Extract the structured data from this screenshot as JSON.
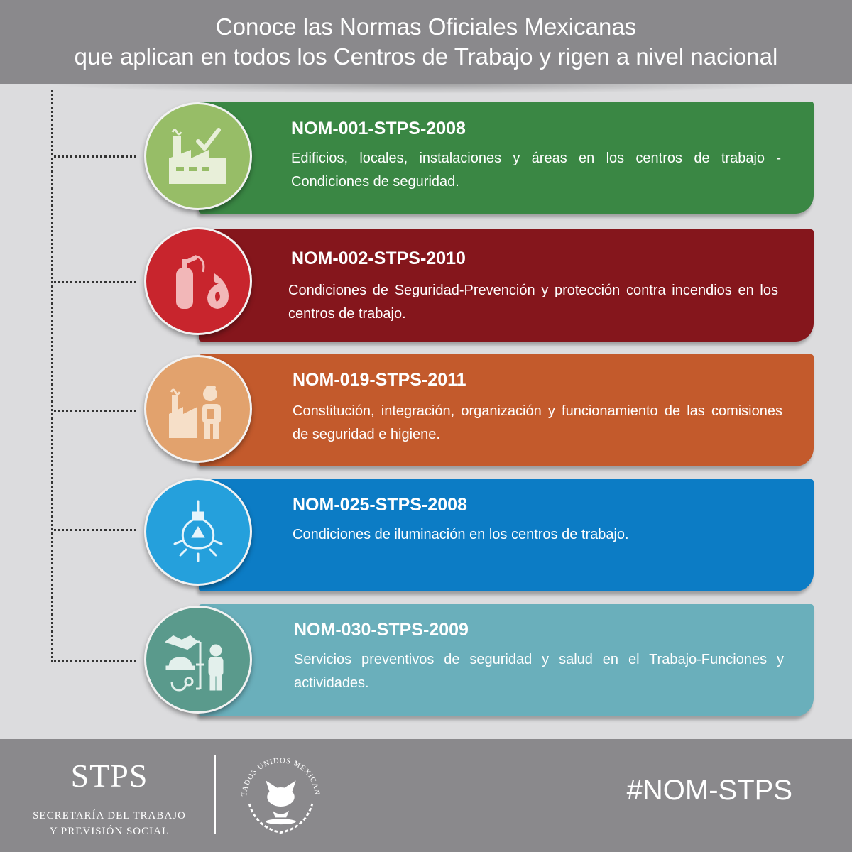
{
  "header": {
    "line1": "Conoce las Normas Oficiales Mexicanas",
    "line2": "que aplican en todos los Centros de Trabajo y rigen a nivel nacional"
  },
  "norms": [
    {
      "code": "NOM-001-STPS-2008",
      "description": "Edificios, locales, instalaciones y áreas en los centros de trabajo - Condiciones de seguridad.",
      "icon": "factory-check-icon",
      "card_color": "#3a8744",
      "circle_color": "#97bd67"
    },
    {
      "code": "NOM-002-STPS-2010",
      "description": "Condiciones de Seguridad-Prevención y protección contra incendios en los centros de trabajo.",
      "icon": "fire-extinguisher-flame-icon",
      "card_color": "#85161c",
      "circle_color": "#c8252d"
    },
    {
      "code": "NOM-019-STPS-2011",
      "description": "Constitución, integración, organización y funcionamiento de las comisiones de seguridad e higiene.",
      "icon": "factory-worker-icon",
      "card_color": "#c35a2c",
      "circle_color": "#e2a26d"
    },
    {
      "code": "NOM-025-STPS-2008",
      "description": "Condiciones de iluminación en los centros de trabajo.",
      "icon": "light-bulb-icon",
      "card_color": "#0c7cc5",
      "circle_color": "#25a0dc"
    },
    {
      "code": "NOM-030-STPS-2009",
      "description": "Servicios preventivos de seguridad y salud en el Trabajo-Funciones y actividades.",
      "icon": "health-safety-services-icon",
      "card_color": "#6aafbb",
      "circle_color": "#5a9a8c"
    }
  ],
  "footer": {
    "logo_text": "STPS",
    "logo_subtitle_1": "SECRETARÍA DEL TRABAJO",
    "logo_subtitle_2": "Y PREVISIÓN SOCIAL",
    "seal_text": "ESTADOS UNIDOS MEXICANOS",
    "hashtag": "#NOM-STPS"
  }
}
